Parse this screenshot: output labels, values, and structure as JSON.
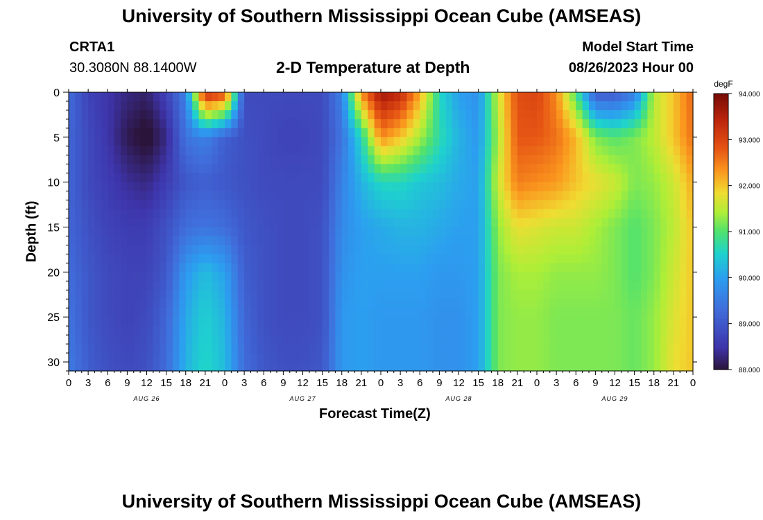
{
  "page": {
    "title_top": "University of Southern Mississippi Ocean Cube (AMSEAS)",
    "station_id": "CRTA1",
    "coords": "30.3080N  88.1400W",
    "chart_title": "2-D Temperature at Depth",
    "model_start_label": "Model Start Time",
    "model_start_value": "08/26/2023 Hour 00",
    "title_bottom": "University of Southern Mississippi Ocean Cube (AMSEAS)"
  },
  "chart_data": {
    "type": "heatmap",
    "title": "2-D Temperature at Depth",
    "xlabel": "Forecast Time(Z)",
    "ylabel": "Depth (ft)",
    "x_hours_range": [
      0,
      96
    ],
    "ylim": [
      0,
      31
    ],
    "x_tick_labels": [
      "0",
      "3",
      "6",
      "9",
      "12",
      "15",
      "18",
      "21",
      "0",
      "3",
      "6",
      "9",
      "12",
      "15",
      "18",
      "21",
      "0",
      "3",
      "6",
      "9",
      "12",
      "15",
      "18",
      "21",
      "0",
      "3",
      "6",
      "9",
      "12",
      "15",
      "18",
      "21",
      "0"
    ],
    "date_labels": [
      {
        "label": "AUG 26",
        "hour": 12
      },
      {
        "label": "AUG 27",
        "hour": 36
      },
      {
        "label": "AUG 28",
        "hour": 60
      },
      {
        "label": "AUG 29",
        "hour": 84
      }
    ],
    "y_ticks": [
      0,
      5,
      10,
      15,
      20,
      25,
      30
    ],
    "colorbar": {
      "unit": "degF",
      "min": 88.0,
      "max": 94.0,
      "tick_values": [
        88,
        89,
        90,
        91,
        92,
        93,
        94
      ],
      "tick_labels": [
        "88.000",
        "89.000",
        "90.000",
        "91.000",
        "92.000",
        "93.000",
        "94.000"
      ]
    },
    "depths_ft": [
      0,
      5,
      10,
      15,
      20,
      25,
      31
    ],
    "hours": [
      0,
      3,
      6,
      9,
      12,
      15,
      18,
      21,
      24,
      27,
      30,
      33,
      36,
      39,
      42,
      45,
      48,
      51,
      54,
      57,
      60,
      63,
      66,
      69,
      72,
      75,
      78,
      81,
      84,
      87,
      90,
      93,
      96
    ],
    "temperature_degF": [
      [
        89.3,
        88.7,
        88.5,
        88.3,
        88.2,
        88.7,
        89.6,
        93.4,
        93.0,
        88.8,
        88.8,
        88.8,
        88.8,
        88.8,
        89.6,
        92.4,
        93.7,
        93.4,
        92.2,
        90.6,
        90.0,
        89.8,
        91.6,
        92.9,
        93.0,
        92.4,
        90.9,
        89.0,
        89.0,
        89.5,
        91.5,
        92.0,
        92.7
      ],
      [
        89.2,
        88.8,
        88.5,
        88.1,
        87.9,
        88.3,
        89.4,
        89.6,
        89.1,
        88.9,
        88.8,
        88.7,
        88.7,
        88.8,
        89.4,
        90.6,
        92.4,
        92.0,
        91.4,
        90.7,
        90.2,
        89.9,
        91.4,
        92.8,
        92.8,
        92.6,
        92.1,
        91.2,
        91.0,
        91.2,
        91.5,
        92.0,
        92.6
      ],
      [
        89.2,
        88.8,
        88.6,
        88.4,
        88.3,
        88.6,
        89.0,
        89.1,
        89.0,
        88.9,
        88.8,
        88.8,
        88.8,
        88.8,
        89.6,
        90.2,
        90.6,
        90.6,
        90.4,
        90.3,
        90.1,
        90.0,
        91.6,
        92.5,
        92.4,
        92.3,
        92.0,
        91.8,
        91.6,
        91.2,
        91.3,
        91.6,
        92.2
      ],
      [
        89.2,
        88.9,
        88.7,
        88.6,
        88.6,
        88.9,
        89.3,
        89.4,
        89.3,
        89.0,
        88.9,
        88.8,
        88.8,
        88.9,
        89.7,
        90.0,
        90.1,
        90.2,
        90.2,
        90.1,
        90.0,
        90.0,
        91.3,
        91.8,
        91.7,
        91.6,
        91.6,
        91.4,
        91.2,
        91.0,
        91.2,
        91.5,
        92.0
      ],
      [
        89.3,
        89.0,
        88.8,
        88.7,
        88.7,
        89.0,
        89.9,
        90.3,
        90.0,
        89.1,
        88.9,
        88.8,
        88.8,
        88.9,
        89.8,
        90.0,
        90.0,
        90.0,
        90.0,
        89.9,
        89.9,
        90.0,
        91.2,
        91.4,
        91.4,
        91.3,
        91.3,
        91.3,
        91.2,
        91.0,
        91.2,
        91.6,
        92.0
      ],
      [
        89.4,
        89.0,
        88.8,
        88.7,
        88.8,
        89.2,
        90.1,
        90.5,
        90.2,
        89.2,
        88.9,
        88.8,
        88.8,
        88.9,
        89.9,
        90.0,
        89.9,
        89.9,
        89.9,
        89.8,
        89.8,
        90.0,
        91.2,
        91.3,
        91.3,
        91.2,
        91.2,
        91.2,
        91.2,
        91.1,
        91.3,
        91.7,
        92.0
      ],
      [
        89.5,
        89.1,
        88.9,
        88.8,
        88.9,
        89.3,
        90.2,
        90.6,
        90.3,
        89.3,
        89.0,
        88.9,
        88.9,
        89.0,
        89.9,
        90.0,
        89.9,
        89.9,
        89.9,
        89.8,
        89.8,
        90.0,
        91.2,
        91.3,
        91.3,
        91.2,
        91.2,
        91.2,
        91.2,
        91.1,
        91.3,
        91.8,
        92.0
      ]
    ]
  }
}
